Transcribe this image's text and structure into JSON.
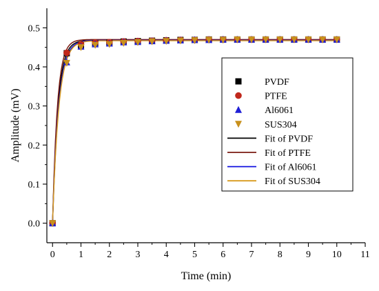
{
  "chart_data": {
    "type": "scatter",
    "title": "",
    "xlabel": "Time (min)",
    "ylabel": "Amplitude (mV)",
    "xlim": [
      -0.2,
      11
    ],
    "ylim": [
      -0.05,
      0.55
    ],
    "xticks": [
      0,
      1,
      2,
      3,
      4,
      5,
      6,
      7,
      8,
      9,
      10,
      11
    ],
    "yticks": [
      0.0,
      0.1,
      0.2,
      0.3,
      0.4,
      0.5
    ],
    "grid": false,
    "legend_position": "center-right",
    "x": [
      0,
      0.5,
      1,
      1.5,
      2,
      2.5,
      3,
      3.5,
      4,
      4.5,
      5,
      5.5,
      6,
      6.5,
      7,
      7.5,
      8,
      8.5,
      9,
      9.5,
      10
    ],
    "series": [
      {
        "name": "PVDF",
        "marker": "square",
        "color": "#000000",
        "values": [
          0.0,
          0.435,
          0.455,
          0.46,
          0.462,
          0.465,
          0.466,
          0.467,
          0.468,
          0.469,
          0.469,
          0.47,
          0.47,
          0.47,
          0.47,
          0.47,
          0.47,
          0.47,
          0.47,
          0.47,
          0.47
        ]
      },
      {
        "name": "PTFE",
        "marker": "circle",
        "color": "#c0281c",
        "values": [
          0.0,
          0.436,
          0.458,
          0.462,
          0.463,
          0.465,
          0.466,
          0.467,
          0.468,
          0.469,
          0.469,
          0.47,
          0.47,
          0.47,
          0.47,
          0.47,
          0.47,
          0.47,
          0.47,
          0.47,
          0.47
        ]
      },
      {
        "name": "Al6061",
        "marker": "triangle-up",
        "color": "#1f1fd6",
        "values": [
          0.0,
          0.412,
          0.452,
          0.458,
          0.46,
          0.463,
          0.464,
          0.466,
          0.467,
          0.468,
          0.469,
          0.469,
          0.47,
          0.47,
          0.47,
          0.47,
          0.47,
          0.47,
          0.47,
          0.47,
          0.47
        ]
      },
      {
        "name": "SUS304",
        "marker": "triangle-down",
        "color": "#c8901c",
        "values": [
          0.0,
          0.41,
          0.45,
          0.456,
          0.458,
          0.461,
          0.463,
          0.465,
          0.466,
          0.467,
          0.468,
          0.469,
          0.469,
          0.47,
          0.47,
          0.47,
          0.47,
          0.47,
          0.47,
          0.47,
          0.47
        ]
      }
    ],
    "fits": [
      {
        "name": "Fit of PVDF",
        "color": "#000000",
        "plateau": 0.468,
        "tau": 0.19
      },
      {
        "name": "Fit of PTFE",
        "color": "#7a1a10",
        "plateau": 0.47,
        "tau": 0.17
      },
      {
        "name": "Fit of Al6061",
        "color": "#1010e0",
        "plateau": 0.468,
        "tau": 0.21
      },
      {
        "name": "Fit of SUS304",
        "color": "#d89a1c",
        "plateau": 0.467,
        "tau": 0.22
      }
    ]
  }
}
